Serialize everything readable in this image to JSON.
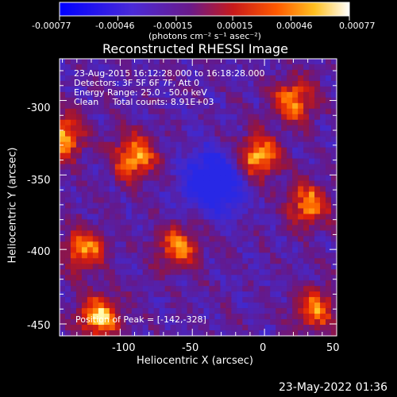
{
  "colorbar": {
    "tick_labels": [
      "-0.00077",
      "-0.00046",
      "-0.00015",
      "0.00015",
      "0.00046",
      "0.00077"
    ],
    "units_label": "(photons cm⁻² s⁻¹ asec⁻²)",
    "range": [
      -0.00077,
      0.00077
    ],
    "colormap": "blue-purple-red-orange-yellow-white"
  },
  "plot": {
    "title": "Reconstructed RHESSI Image",
    "xlabel": "Heliocentric X (arcsec)",
    "ylabel": "Heliocentric Y (arcsec)",
    "xticks": [
      -100,
      -50,
      0,
      50
    ],
    "yticks": [
      -300,
      -350,
      -400,
      -450
    ],
    "xlim": [
      -142,
      50
    ],
    "ylim": [
      -458,
      -272
    ]
  },
  "info": {
    "line1": "23-Aug-2015 16:12:28.000 to 16:18:28.000",
    "line2": "Detectors: 3F 5F 6F 7F, Att 0",
    "line3": "Energy Range: 25.0 - 50.0 keV",
    "line4": "Clean     Total counts: 8.91E+03",
    "peak": "Position of Peak = [-142,-328]"
  },
  "timestamp": "23-May-2022 01:36",
  "colors": {
    "background": "#000000",
    "text": "#ffffff",
    "low": "#2a2aff",
    "mid": "#5a1aa8",
    "high": "#ffe050"
  },
  "features": [
    {
      "name": "left-edge-blob",
      "x": -140,
      "y": -325,
      "strength": 1.0
    },
    {
      "name": "upper-left-ring",
      "x": -90,
      "y": -338,
      "strength": 1.0
    },
    {
      "name": "center-right-source",
      "x": -5,
      "y": -338,
      "strength": 1.0
    },
    {
      "name": "right-arm",
      "x": 20,
      "y": -300,
      "strength": 0.9
    },
    {
      "name": "lower-center-arc",
      "x": -60,
      "y": -398,
      "strength": 0.8
    },
    {
      "name": "lower-left-region",
      "x": -125,
      "y": -400,
      "strength": 0.85
    },
    {
      "name": "bottom-left-corner",
      "x": -115,
      "y": -445,
      "strength": 1.0
    },
    {
      "name": "right-lower-source",
      "x": 30,
      "y": -370,
      "strength": 0.85
    },
    {
      "name": "bottom-right-source",
      "x": 35,
      "y": -440,
      "strength": 0.8
    },
    {
      "name": "central-negative-hole",
      "x": -35,
      "y": -355,
      "strength": -1.0
    }
  ]
}
